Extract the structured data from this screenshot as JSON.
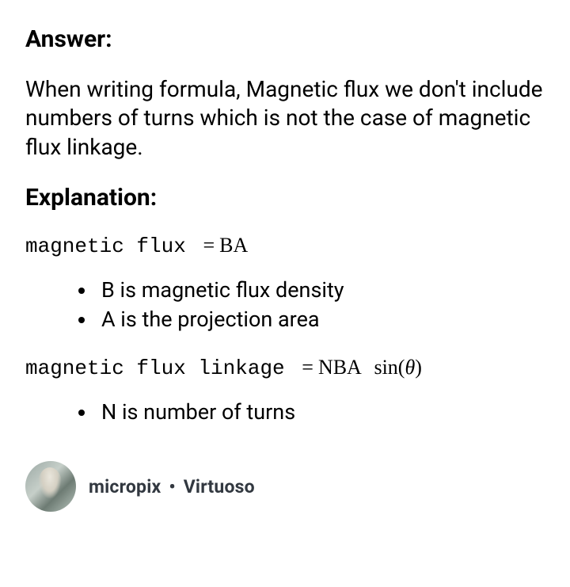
{
  "answer": {
    "heading": "Answer:",
    "body": "When writing formula, Magnetic flux we don't include numbers of turns which is not the case of magnetic flux linkage."
  },
  "explanation": {
    "heading": "Explanation:",
    "formula1": {
      "lhs": "magnetic flux",
      "eq": "=",
      "rhs": "BA"
    },
    "defs1": [
      "B is magnetic flux density",
      "A is the projection area"
    ],
    "formula2": {
      "lhs": "magnetic flux linkage",
      "eq": "=",
      "rhs_nba": "NBA",
      "rhs_sin": "sin",
      "rhs_open": "(",
      "rhs_theta": "θ",
      "rhs_close": ")"
    },
    "defs2": [
      "N is number of turns"
    ]
  },
  "author": {
    "name": "micropix",
    "separator": "•",
    "rank": "Virtuoso"
  },
  "colors": {
    "background": "#ffffff",
    "text": "#000000",
    "author_text": "#323840"
  }
}
